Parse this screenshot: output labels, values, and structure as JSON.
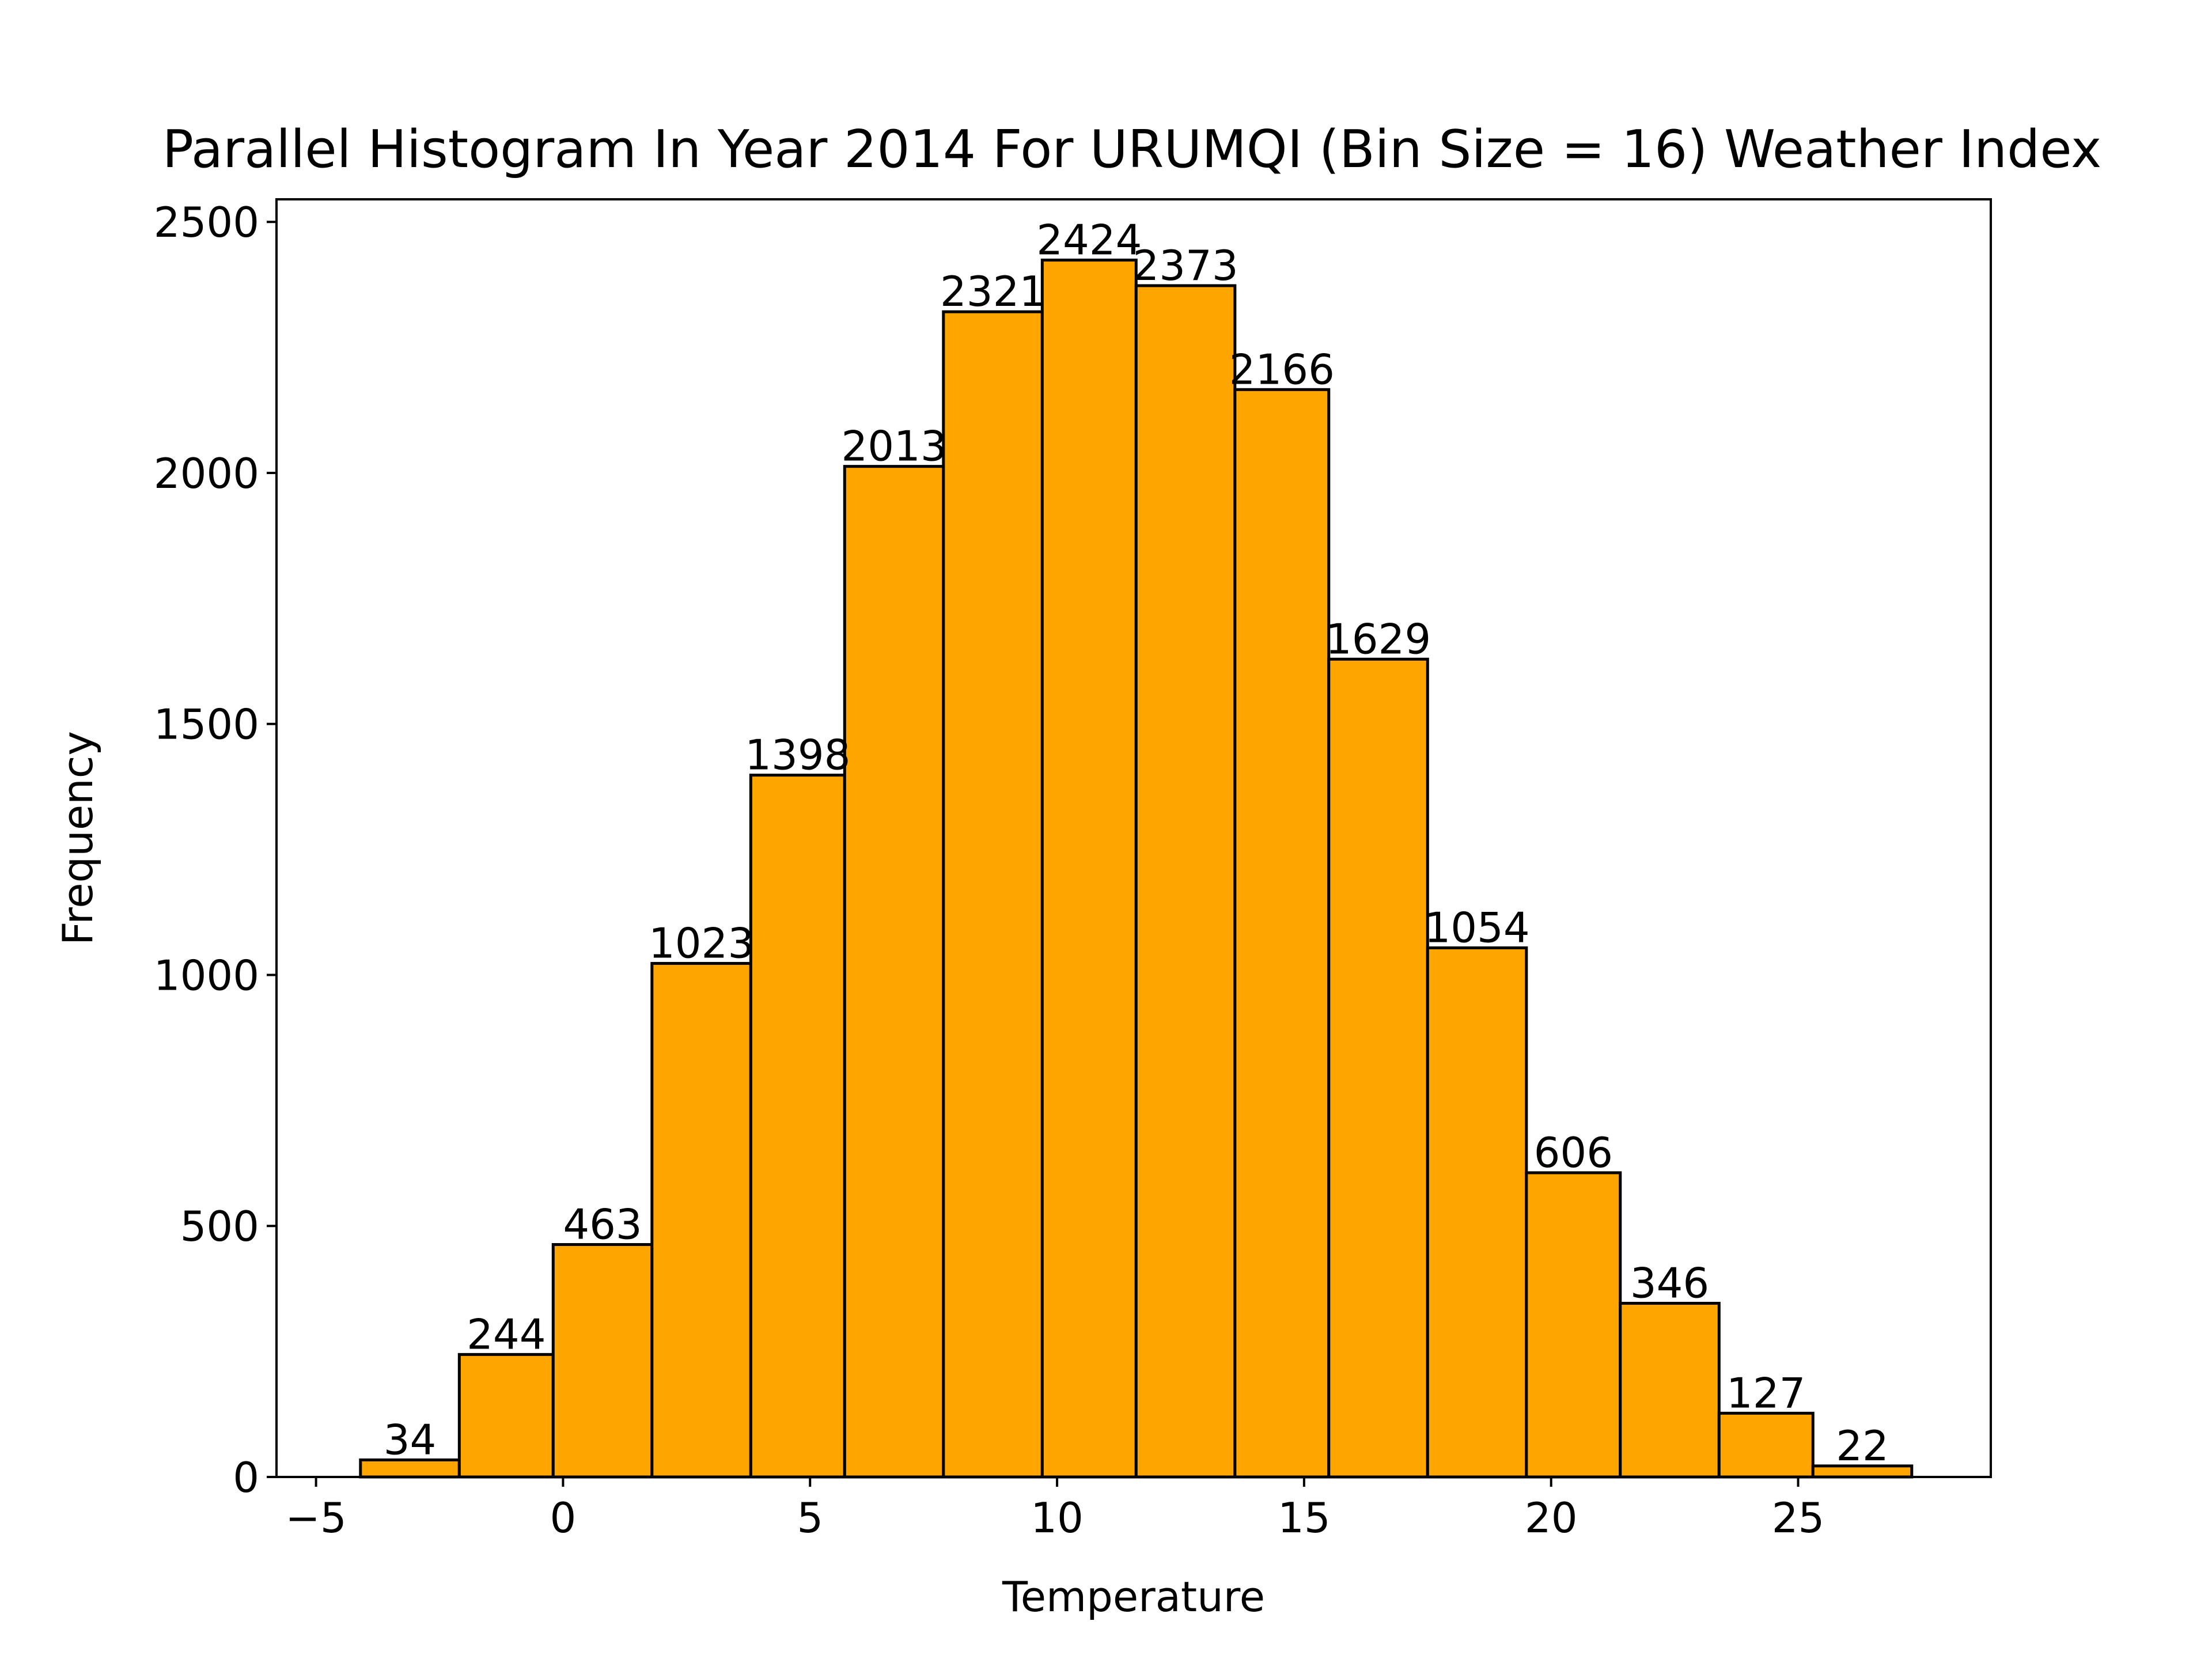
{
  "chart_data": {
    "type": "bar",
    "title": "Parallel Histogram In Year 2014 For URUMQI (Bin Size = 16) Weather Index",
    "xlabel": "Temperature",
    "ylabel": "Frequency",
    "bin_edges": [
      -4.1,
      -2.1,
      -0.2,
      1.8,
      3.8,
      5.7,
      7.7,
      9.7,
      11.6,
      13.6,
      15.5,
      17.5,
      19.5,
      21.4,
      23.4,
      25.3,
      27.3
    ],
    "values": [
      34,
      244,
      463,
      1023,
      1398,
      2013,
      2321,
      2424,
      2373,
      2166,
      1629,
      1054,
      606,
      346,
      127,
      22
    ],
    "xlim": [
      -5.8,
      28.9
    ],
    "ylim": [
      0,
      2545
    ],
    "xticks": [
      -5,
      0,
      5,
      10,
      15,
      20,
      25
    ],
    "xtick_labels": [
      "−5",
      "0",
      "5",
      "10",
      "15",
      "20",
      "25"
    ],
    "yticks": [
      0,
      500,
      1000,
      1500,
      2000,
      2500
    ],
    "ytick_labels": [
      "0",
      "500",
      "1000",
      "1500",
      "2000",
      "2500"
    ],
    "bar_color": "#ffa500",
    "edge_color": "#000000",
    "grid": false,
    "legend": "none"
  }
}
